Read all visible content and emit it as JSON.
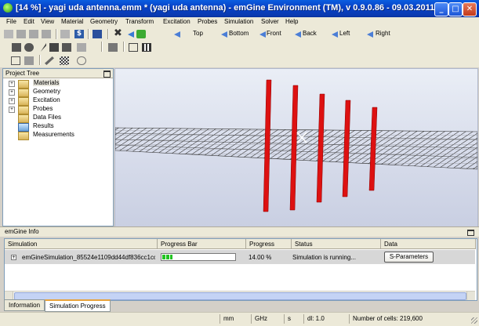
{
  "window": {
    "title": "[14 %] - yagi uda antenna.emm * (yagi uda antenna) - emGine Environment (TM), v 0.9.0.86 - 09.03.2011",
    "minimize_icon": "minimize-icon",
    "maximize_icon": "maximize-icon",
    "close_icon": "close-icon"
  },
  "menu": [
    "File",
    "Edit",
    "View",
    "Material",
    "Geometry",
    "Transform",
    "Excitation",
    "Probes",
    "Simulation",
    "Solver",
    "Help"
  ],
  "view_toolbar": {
    "top": "Top",
    "bottom": "Bottom",
    "front": "Front",
    "back": "Back",
    "left": "Left",
    "right": "Right"
  },
  "project_tree": {
    "title": "Project Tree",
    "items": [
      {
        "label": "Materials",
        "expandable": true,
        "selected": true
      },
      {
        "label": "Geometry",
        "expandable": true
      },
      {
        "label": "Excitation",
        "expandable": true
      },
      {
        "label": "Probes",
        "expandable": true
      },
      {
        "label": "Data Files",
        "expandable": false
      },
      {
        "label": "Results",
        "expandable": false
      },
      {
        "label": "Measurements",
        "expandable": false
      }
    ]
  },
  "info_panel": {
    "title": "emGine Info",
    "columns": [
      "Simulation",
      "Progress Bar",
      "Progress",
      "Status",
      "Data"
    ],
    "rows": [
      {
        "simulation": "emGineSimulation_85524e1109dd44df836cc1cc",
        "progress_fraction": 0.14,
        "progress": "14.00 %",
        "status": "Simulation is running...",
        "data_button": "S-Parameters"
      }
    ]
  },
  "tabs": [
    "Information",
    "Simulation Progress"
  ],
  "status_bar": {
    "unit_length": "mm",
    "unit_freq": "GHz",
    "unit_time": "s",
    "dl": "dl: 1.0",
    "cells": "Number of cells: 219,600"
  },
  "colors": {
    "title_bar": "#0a4fd6",
    "antenna_element": "#dd1111",
    "progress_fill": "#22c322"
  }
}
